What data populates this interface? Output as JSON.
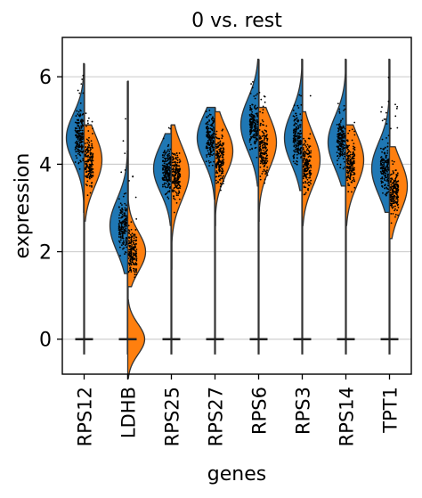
{
  "chart_data": {
    "type": "violin",
    "title": "0 vs. rest",
    "xlabel": "genes",
    "ylabel": "expression",
    "ylim": [
      -0.8,
      6.9
    ],
    "yticks": [
      0,
      2,
      4,
      6
    ],
    "grid": "horizontal",
    "legend": "none",
    "split": true,
    "groups": [
      "0",
      "rest"
    ],
    "colors": {
      "0": "#1f77b4",
      "rest": "#ff7f0e"
    },
    "genes": [
      {
        "name": "RPS12",
        "left": {
          "median": 4.6,
          "min": 2.9,
          "max": 6.3,
          "pts_max": 6.3,
          "peaks": [
            [
              4.6,
              0.55
            ]
          ],
          "zero": 0
        },
        "right": {
          "median": 4.0,
          "min": 2.7,
          "max": 4.9,
          "pts_max": 5.3,
          "peaks": [
            [
              4.1,
              0.6
            ]
          ],
          "zero": 0.02
        }
      },
      {
        "name": "LDHB",
        "left": {
          "median": 2.6,
          "min": 1.5,
          "max": 4.3,
          "pts_max": 5.1,
          "peaks": [
            [
              2.6,
              0.6
            ]
          ],
          "zero": 0
        },
        "right": {
          "median": 2.0,
          "min": 1.2,
          "max": 5.9,
          "pts_max": 3.8,
          "peaks": [
            [
              2.0,
              0.45
            ]
          ],
          "zero": 0.55
        }
      },
      {
        "name": "RPS25",
        "left": {
          "median": 3.9,
          "min": 2.6,
          "max": 4.7,
          "pts_max": 4.9,
          "peaks": [
            [
              3.9,
              0.55
            ]
          ],
          "zero": 0
        },
        "right": {
          "median": 3.7,
          "min": 1.6,
          "max": 4.9,
          "pts_max": 4.3,
          "peaks": [
            [
              3.8,
              0.6
            ]
          ],
          "zero": 0.02
        }
      },
      {
        "name": "RPS27",
        "left": {
          "median": 4.6,
          "min": 3.2,
          "max": 5.3,
          "pts_max": 5.3,
          "peaks": [
            [
              4.6,
              0.55
            ]
          ],
          "zero": 0
        },
        "right": {
          "median": 4.1,
          "min": 2.6,
          "max": 5.2,
          "pts_max": 4.9,
          "peaks": [
            [
              4.3,
              0.55
            ]
          ],
          "zero": 0.02
        }
      },
      {
        "name": "RPS6",
        "left": {
          "median": 4.9,
          "min": 3.5,
          "max": 6.4,
          "pts_max": 6.0,
          "peaks": [
            [
              4.9,
              0.6
            ]
          ],
          "zero": 0
        },
        "right": {
          "median": 4.3,
          "min": 2.7,
          "max": 5.3,
          "pts_max": 5.8,
          "peaks": [
            [
              4.5,
              0.6
            ]
          ],
          "zero": 0.02
        }
      },
      {
        "name": "RPS3",
        "left": {
          "median": 4.6,
          "min": 3.4,
          "max": 6.4,
          "pts_max": 5.7,
          "peaks": [
            [
              4.6,
              0.6
            ]
          ],
          "zero": 0
        },
        "right": {
          "median": 4.0,
          "min": 2.6,
          "max": 5.2,
          "pts_max": 5.9,
          "peaks": [
            [
              4.1,
              0.6
            ]
          ],
          "zero": 0.02
        }
      },
      {
        "name": "RPS14",
        "left": {
          "median": 4.5,
          "min": 3.5,
          "max": 6.4,
          "pts_max": 5.5,
          "peaks": [
            [
              4.5,
              0.6
            ]
          ],
          "zero": 0
        },
        "right": {
          "median": 4.0,
          "min": 2.6,
          "max": 4.9,
          "pts_max": 5.1,
          "peaks": [
            [
              4.1,
              0.6
            ]
          ],
          "zero": 0.02
        }
      },
      {
        "name": "TPT1",
        "left": {
          "median": 3.9,
          "min": 2.9,
          "max": 6.4,
          "pts_max": 6.0,
          "peaks": [
            [
              3.9,
              0.6
            ]
          ],
          "zero": 0
        },
        "right": {
          "median": 3.4,
          "min": 2.3,
          "max": 4.4,
          "pts_max": 5.6,
          "peaks": [
            [
              3.5,
              0.6
            ]
          ],
          "zero": 0.02
        }
      }
    ]
  }
}
